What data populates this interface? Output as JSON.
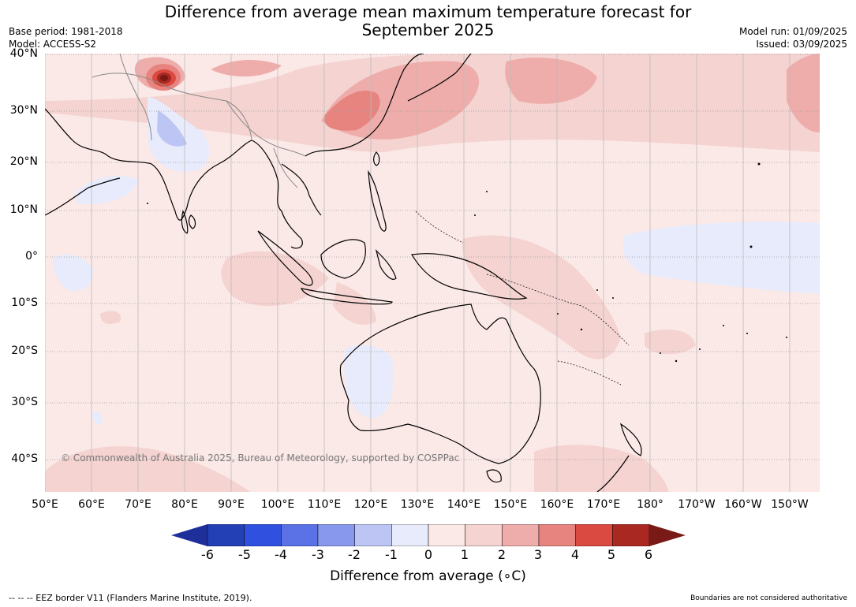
{
  "title": "Difference from average mean maximum temperature forecast for\nSeptember 2025",
  "title_line1": "Difference from average mean maximum temperature forecast for",
  "title_line2": "September 2025",
  "base_period": "Base period: 1981-2018",
  "model": "Model: ACCESS-S2",
  "model_run": "Model run: 01/09/2025",
  "issued": "Issued: 03/09/2025",
  "lat_labels": [
    "40°N",
    "30°N",
    "20°N",
    "10°N",
    "0°",
    "10°S",
    "20°S",
    "30°S",
    "40°S"
  ],
  "lon_labels": [
    "50°E",
    "60°E",
    "70°E",
    "80°E",
    "90°E",
    "100°E",
    "110°E",
    "120°E",
    "130°E",
    "140°E",
    "150°E",
    "160°E",
    "170°E",
    "180°",
    "170°W",
    "160°W",
    "150°W"
  ],
  "copyright": "© Commonwealth of Australia 2025, Bureau of Meteorology, supported by COSPPac",
  "colorbar": {
    "ticks": [
      "-6",
      "-5",
      "-4",
      "-3",
      "-2",
      "-1",
      "0",
      "1",
      "2",
      "3",
      "4",
      "5",
      "6"
    ],
    "colors": [
      "#1f2f9a",
      "#2340b4",
      "#3050e0",
      "#5a72e6",
      "#8898ec",
      "#bcc5f4",
      "#e8ebfb",
      "#fbe9e7",
      "#f4d3d1",
      "#eeadaa",
      "#e78480",
      "#db4a40",
      "#a92822",
      "#7a1a16"
    ],
    "label": "Difference from average (°C)",
    "label_text": "Difference from average (",
    "label_unit": "∘C)"
  },
  "footer_left": "--  --  -- EEZ border V11 (Flanders Marine Institute, 2019).",
  "footer_right": "Boundaries are not considered authoritative"
}
